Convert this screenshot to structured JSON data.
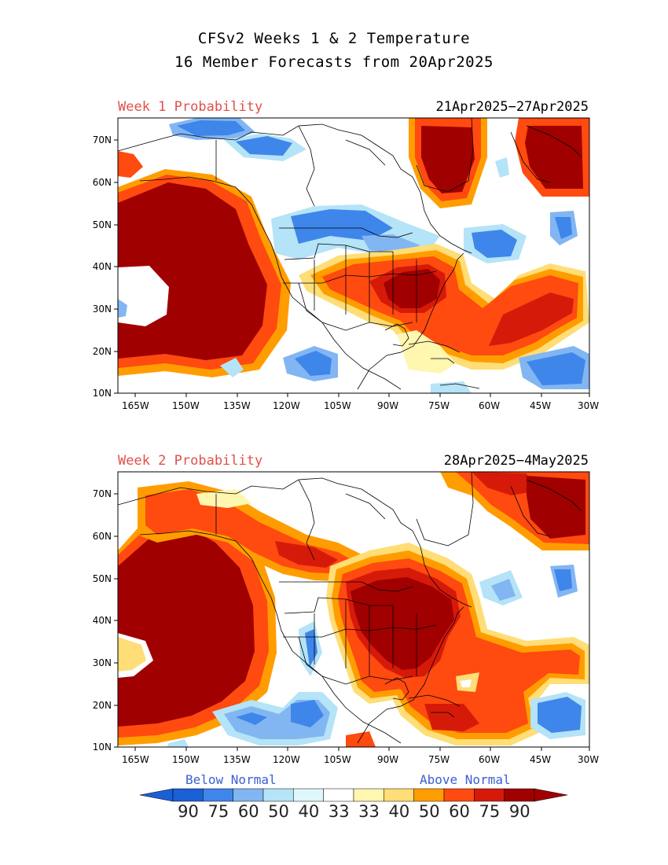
{
  "title_line1": "CFSv2 Weeks 1 & 2 Temperature",
  "title_line2": "16 Member Forecasts from 20Apr2025",
  "panels": [
    {
      "label": "Week 1 Probability",
      "dates": "21Apr2025−27Apr2025"
    },
    {
      "label": "Week 2 Probability",
      "dates": "28Apr2025−4May2025"
    }
  ],
  "y_ticks": [
    "70N",
    "60N",
    "50N",
    "40N",
    "30N",
    "20N",
    "10N"
  ],
  "x_ticks": [
    "165W",
    "150W",
    "135W",
    "120W",
    "105W",
    "90W",
    "75W",
    "60W",
    "45W",
    "30W"
  ],
  "legend": {
    "below_label": "Below Normal",
    "above_label": "Above Normal",
    "below_values": [
      "90",
      "75",
      "60",
      "50",
      "40",
      "33"
    ],
    "above_values": [
      "33",
      "40",
      "50",
      "60",
      "75",
      "90"
    ],
    "colors": [
      "#1a5fd6",
      "#3f86ea",
      "#82b6f2",
      "#b5e3f7",
      "#dff7fb",
      "#ffffff",
      "#fff6b0",
      "#ffdd77",
      "#ff9d00",
      "#ff4a10",
      "#d61a0a",
      "#a00000"
    ]
  }
}
